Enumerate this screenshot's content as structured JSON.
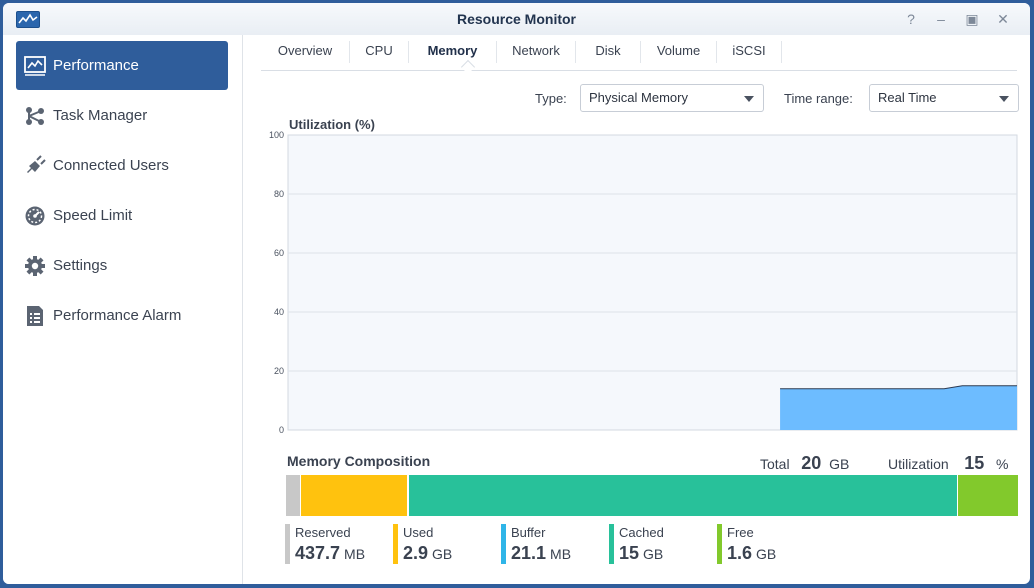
{
  "window": {
    "title": "Resource Monitor"
  },
  "sidebar": {
    "items": [
      {
        "label": "Performance",
        "icon": "performance-chart-icon"
      },
      {
        "label": "Task Manager",
        "icon": "task-manager-icon"
      },
      {
        "label": "Connected Users",
        "icon": "plug-icon"
      },
      {
        "label": "Speed Limit",
        "icon": "speedometer-icon"
      },
      {
        "label": "Settings",
        "icon": "gear-icon"
      },
      {
        "label": "Performance Alarm",
        "icon": "alarm-list-icon"
      }
    ],
    "active": "Performance"
  },
  "tabs": [
    "Overview",
    "CPU",
    "Memory",
    "Network",
    "Disk",
    "Volume",
    "iSCSI"
  ],
  "active_tab": "Memory",
  "filters": {
    "type_label": "Type:",
    "type_value": "Physical Memory",
    "range_label": "Time range:",
    "range_value": "Real Time"
  },
  "chart": {
    "title": "Utilization (%)"
  },
  "chart_data": {
    "type": "area",
    "title": "Utilization (%)",
    "ylim": [
      0,
      100
    ],
    "yticks": [
      "100",
      "80",
      "60",
      "40",
      "20",
      "0"
    ],
    "grid": true,
    "x": [
      0,
      1,
      2,
      3,
      4,
      5,
      6,
      7,
      8,
      9,
      10,
      11,
      12,
      13,
      14,
      15,
      16,
      17,
      18,
      19,
      20,
      21,
      22,
      23,
      24,
      25,
      26,
      27,
      28,
      29,
      30,
      31,
      32,
      33,
      34,
      35,
      36,
      37,
      38,
      39,
      40
    ],
    "series": [
      {
        "values": [
          null,
          null,
          null,
          null,
          null,
          null,
          null,
          null,
          null,
          null,
          null,
          null,
          null,
          null,
          null,
          null,
          null,
          null,
          null,
          null,
          null,
          null,
          null,
          null,
          null,
          null,
          null,
          14,
          14,
          14,
          14,
          14,
          14,
          14,
          14,
          14,
          14,
          15,
          15,
          15,
          15
        ],
        "color": "#6dbcff"
      }
    ]
  },
  "composition": {
    "title": "Memory Composition",
    "total_label": "Total",
    "total_value": "20",
    "total_unit": "GB",
    "util_label": "Utilization",
    "util_value": "15",
    "util_unit": "%",
    "segments": [
      {
        "name": "Reserved",
        "value": "437.7",
        "unit": "MB",
        "fraction": 0.021,
        "color": "#c8c8c8"
      },
      {
        "name": "Used",
        "value": "2.9",
        "unit": "GB",
        "fraction": 0.145,
        "color": "#ffc20e"
      },
      {
        "name": "Buffer",
        "value": "21.1",
        "unit": "MB",
        "fraction": 0.001,
        "color": "#2fb5e8"
      },
      {
        "name": "Cached",
        "value": "15",
        "unit": "GB",
        "fraction": 0.75,
        "color": "#28c19a"
      },
      {
        "name": "Free",
        "value": "1.6",
        "unit": "GB",
        "fraction": 0.083,
        "color": "#82c92c"
      }
    ]
  }
}
